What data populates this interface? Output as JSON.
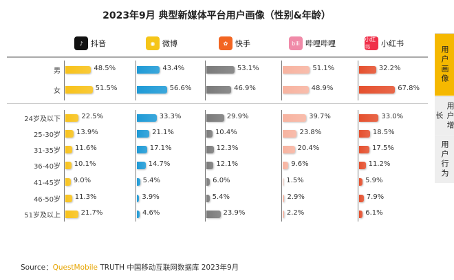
{
  "chart_data": {
    "type": "bar",
    "title": "2023年9月 典型新媒体平台用户画像（性别&年龄）",
    "platforms": [
      {
        "name": "抖音",
        "icon": "douyin-logo",
        "color": "#f8c21a"
      },
      {
        "name": "微博",
        "icon": "weibo-logo",
        "color": "#1e9ad6"
      },
      {
        "name": "快手",
        "icon": "kuaishou-logo",
        "color": "#7a7a7a"
      },
      {
        "name": "哔哩哔哩",
        "icon": "bilibili-logo",
        "color": "#f7b3a0"
      },
      {
        "name": "小红书",
        "icon": "xiaohongshu-logo",
        "color": "#e5502e"
      }
    ],
    "gender": {
      "categories": [
        "男",
        "女"
      ],
      "values": [
        [
          48.5,
          51.5
        ],
        [
          43.4,
          56.6
        ],
        [
          53.1,
          46.9
        ],
        [
          51.1,
          48.9
        ],
        [
          32.2,
          67.8
        ]
      ]
    },
    "age": {
      "categories": [
        "24岁及以下",
        "25-30岁",
        "31-35岁",
        "36-40岁",
        "41-45岁",
        "46-50岁",
        "51岁及以上"
      ],
      "values": [
        [
          22.5,
          13.9,
          11.6,
          10.1,
          9.0,
          11.3,
          21.7
        ],
        [
          33.3,
          21.1,
          17.1,
          14.7,
          5.4,
          3.9,
          4.6
        ],
        [
          29.9,
          10.4,
          12.3,
          12.1,
          6.0,
          5.4,
          23.9
        ],
        [
          39.7,
          23.8,
          20.4,
          9.6,
          1.5,
          2.9,
          2.2
        ],
        [
          33.0,
          18.5,
          17.5,
          11.2,
          5.9,
          7.9,
          6.1
        ]
      ]
    },
    "unit": "%"
  },
  "tabs": [
    {
      "label": "用户画像",
      "active": true
    },
    {
      "label": "用户增长"
    },
    {
      "label": "用户行为"
    }
  ],
  "source": {
    "prefix": "Source：",
    "brand": "QuestMobile",
    "rest": " TRUTH 中国移动互联网数据库 2023年9月"
  }
}
